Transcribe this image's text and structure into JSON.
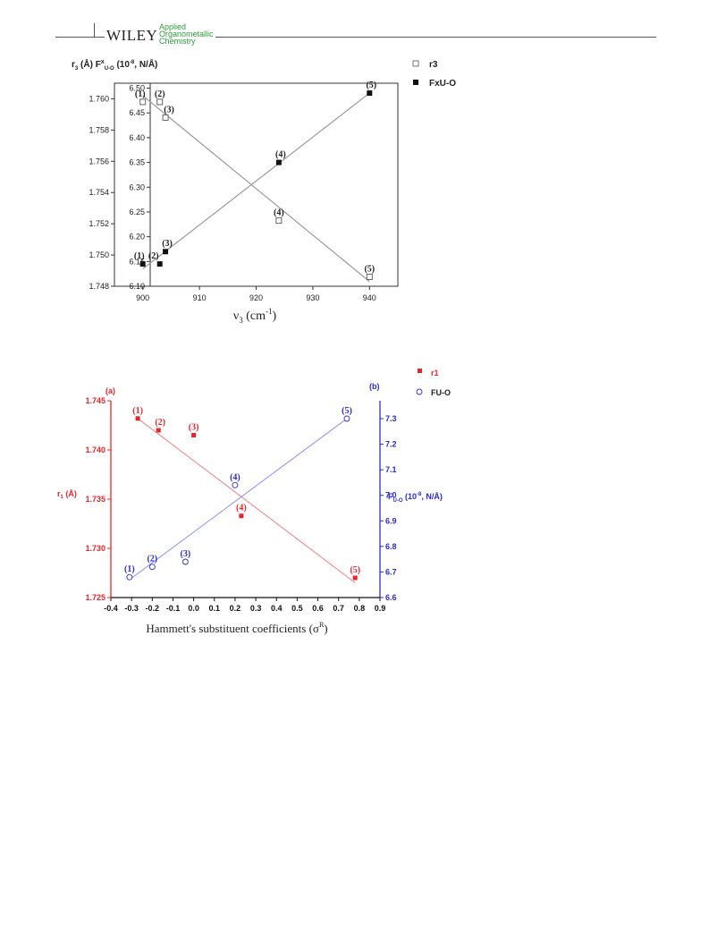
{
  "header": {
    "publisher": "WILEY",
    "journal_lines": [
      "Applied",
      "Organometallic",
      "Chemistry"
    ]
  },
  "chart_data": [
    {
      "type": "scatter",
      "panel": "top",
      "xlabel": "ν3 (cm-1)",
      "ylabel_left": "r3 (Å)",
      "ylabel_right": "Fx U-O (10-8, N/Å)",
      "xlim": [
        895,
        945
      ],
      "xticks": [
        "900",
        "910",
        "920",
        "930",
        "940"
      ],
      "ylim_left": [
        1.748,
        1.761
      ],
      "yticks_left": [
        "1.748",
        "1.750",
        "1.752",
        "1.754",
        "1.756",
        "1.758",
        "1.760"
      ],
      "ylim_right": [
        6.1,
        6.51
      ],
      "yticks_right": [
        "6.10",
        "6.15",
        "6.20",
        "6.25",
        "6.30",
        "6.35",
        "6.40",
        "6.45",
        "6.50"
      ],
      "legend": {
        "placement": "top-right",
        "entries": [
          "r3",
          "FxU-O"
        ]
      },
      "grid": false,
      "series": [
        {
          "name": "r3",
          "marker": "open-square",
          "axis": "left",
          "x": [
            900,
            903,
            904,
            924,
            940
          ],
          "y": [
            1.7598,
            1.7598,
            1.7588,
            1.7522,
            1.7486
          ],
          "labels": [
            "(1)",
            "(2)",
            "(3)",
            "(4)",
            "(5)"
          ],
          "fit": {
            "x": [
              900,
              940
            ],
            "y": [
              1.7602,
              1.7483
            ]
          }
        },
        {
          "name": "FxU-O",
          "marker": "filled-square",
          "axis": "right",
          "x": [
            900,
            903,
            904,
            924,
            940
          ],
          "y": [
            6.145,
            6.145,
            6.17,
            6.35,
            6.49
          ],
          "labels": [
            "(1)",
            "(2)",
            "(3)",
            "(4)",
            "(5)"
          ],
          "fit": {
            "x": [
              900,
              940
            ],
            "y": [
              6.135,
              6.49
            ]
          }
        }
      ]
    },
    {
      "type": "scatter",
      "panel": "bottom",
      "xlabel": "Hammett's substituent coefficients (σR)",
      "ylabel_left": "r1 (Å)",
      "ylabel_right": "FU-O (10-8, N/Å)",
      "xlim": [
        -0.4,
        0.9
      ],
      "xticks": [
        "-0.4",
        "-0.3",
        "-0.2",
        "-0.1",
        "0.0",
        "0.1",
        "0.2",
        "0.3",
        "0.4",
        "0.5",
        "0.6",
        "0.7",
        "0.8",
        "0.9"
      ],
      "ylim_left": [
        1.725,
        1.745
      ],
      "yticks_left": [
        "1.725",
        "1.730",
        "1.735",
        "1.740",
        "1.745"
      ],
      "ylim_right": [
        6.6,
        7.37
      ],
      "yticks_right": [
        "6.6",
        "6.7",
        "6.8",
        "6.9",
        "7.0",
        "7.1",
        "7.2",
        "7.3"
      ],
      "panel_labels": [
        "(a)",
        "(b)"
      ],
      "legend": {
        "placement": "top-right",
        "entries": [
          "r1",
          "FU-O"
        ]
      },
      "grid": false,
      "series": [
        {
          "name": "r1",
          "color": "#e8262a",
          "marker": "filled-square",
          "axis": "left",
          "x": [
            -0.27,
            -0.17,
            0.0,
            0.23,
            0.78
          ],
          "y": [
            1.7432,
            1.742,
            1.7415,
            1.7333,
            1.727
          ],
          "labels": [
            "(1)",
            "(2)",
            "(3)",
            "(4)",
            "(5)"
          ],
          "fit": {
            "x": [
              -0.27,
              0.78
            ],
            "y": [
              1.7432,
              1.7265
            ]
          }
        },
        {
          "name": "FU-O",
          "color": "#2b2bd6",
          "marker": "open-circle",
          "axis": "right",
          "x": [
            -0.31,
            -0.2,
            -0.04,
            0.2,
            0.74
          ],
          "y": [
            6.68,
            6.72,
            6.74,
            7.04,
            7.3
          ],
          "labels": [
            "(1)",
            "(2)",
            "(3)",
            "(4)",
            "(5)"
          ],
          "fit": {
            "x": [
              -0.31,
              0.74
            ],
            "y": [
              6.67,
              7.3
            ]
          }
        }
      ]
    }
  ]
}
